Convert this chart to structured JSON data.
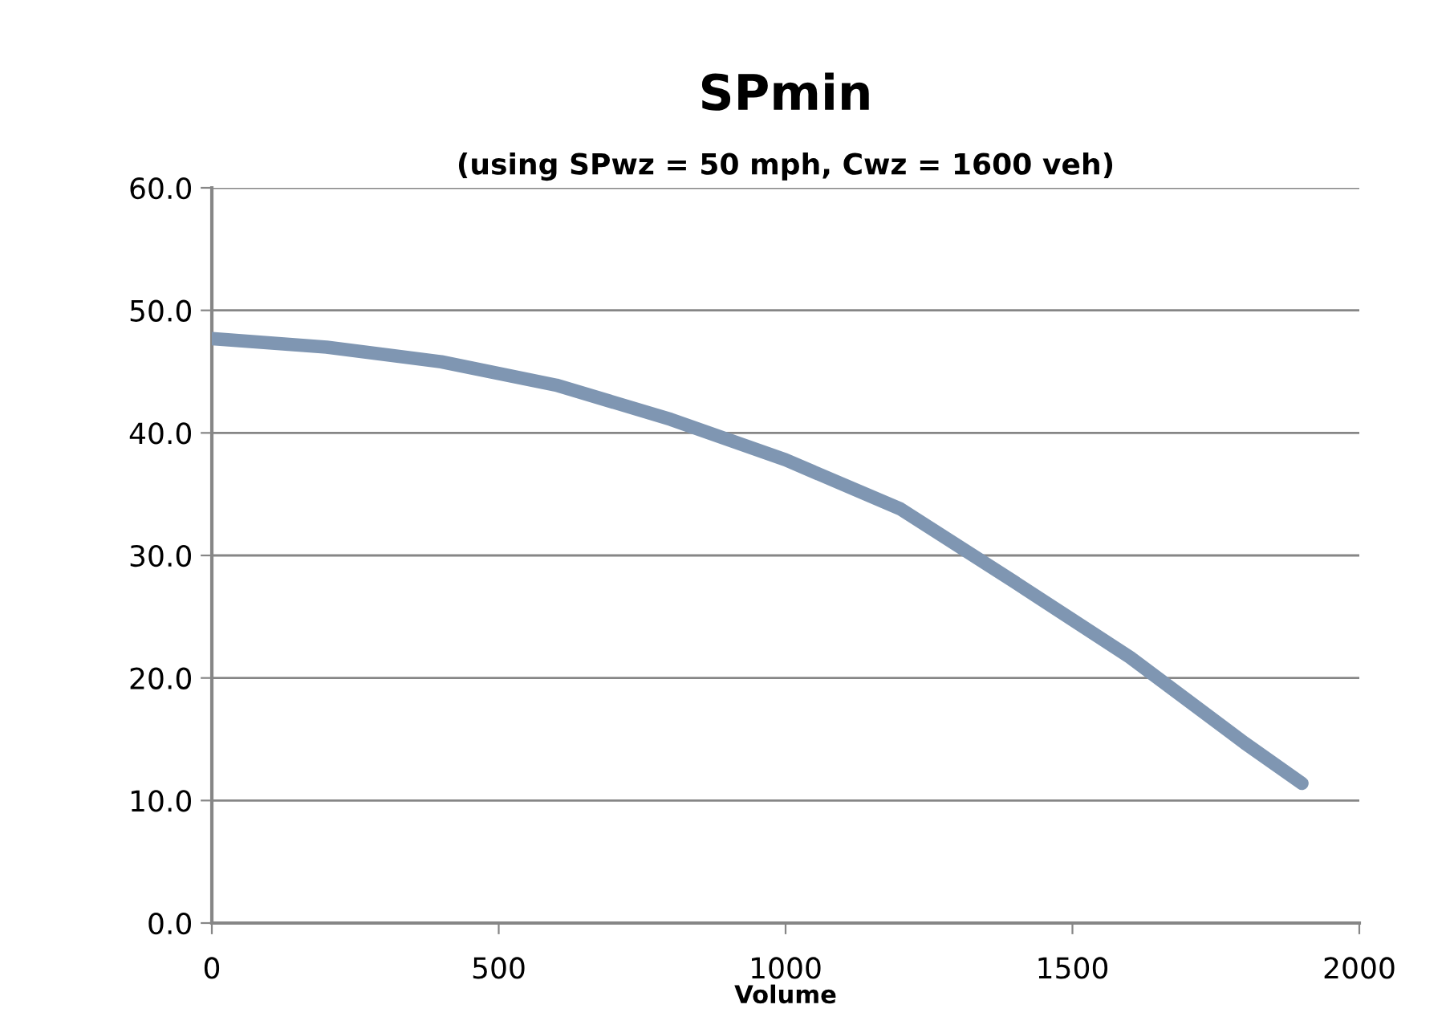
{
  "chart_data": {
    "type": "line",
    "title": "SPmin",
    "subtitle": "(using SPwz = 50 mph, Cwz = 1600 veh)",
    "xlabel": "Volume",
    "x": [
      0,
      200,
      400,
      600,
      800,
      1000,
      1200,
      1400,
      1600,
      1800,
      1900
    ],
    "series": [
      {
        "color": "#7f96b2",
        "values": [
          47.7,
          47.0,
          45.8,
          43.9,
          41.1,
          37.8,
          33.8,
          27.8,
          21.7,
          14.7,
          11.4
        ]
      }
    ],
    "xlim": [
      0,
      2000
    ],
    "xticks": [
      0,
      500,
      1000,
      1500,
      2000
    ],
    "ylim": [
      0,
      60
    ],
    "yticks": [
      {
        "value": 0,
        "label": "0.0"
      },
      {
        "value": 10,
        "label": "10.0"
      },
      {
        "value": 20,
        "label": "20.0"
      },
      {
        "value": 30,
        "label": "30.0"
      },
      {
        "value": 40,
        "label": "40.0"
      },
      {
        "value": 50,
        "label": "50.0"
      },
      {
        "value": 60,
        "label": "60.0"
      }
    ],
    "grid": "y",
    "marker": "none",
    "line_style": "solid",
    "legend": false
  }
}
